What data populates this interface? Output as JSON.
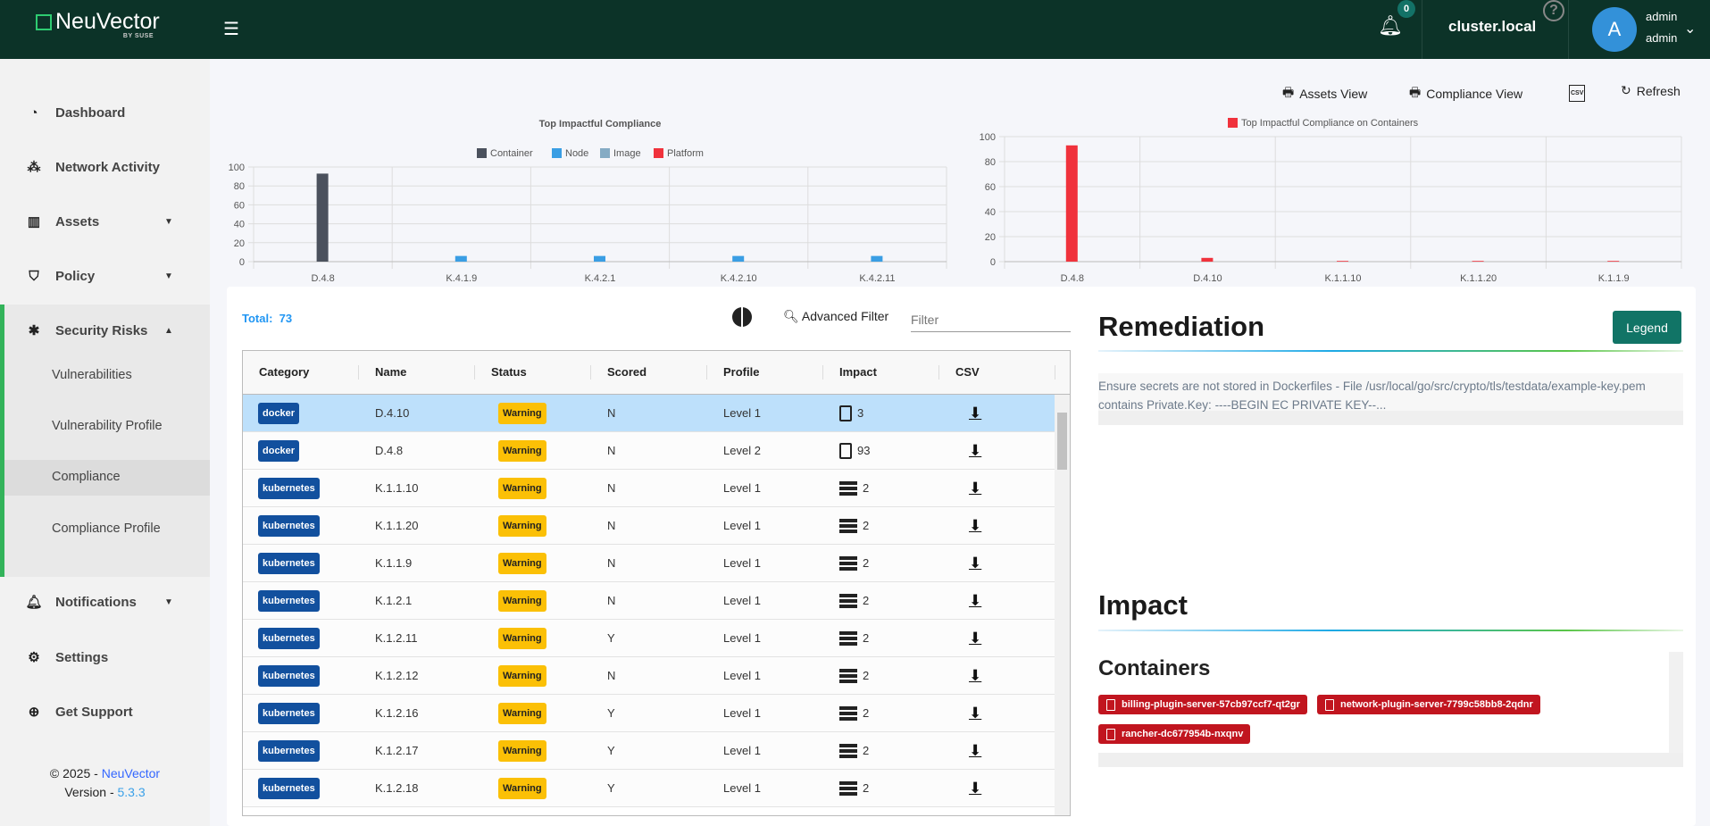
{
  "header": {
    "brand": "NeuVector",
    "brand_sub": "BY SUSE",
    "notification_count": "0",
    "cluster": "cluster.local",
    "help": "?",
    "avatar_letter": "A",
    "user_name": "admin",
    "user_role": "admin"
  },
  "sidebar": {
    "items": [
      {
        "label": "Dashboard",
        "icon": "gauge-icon"
      },
      {
        "label": "Network Activity",
        "icon": "network-icon"
      },
      {
        "label": "Assets",
        "icon": "assets-icon"
      },
      {
        "label": "Policy",
        "icon": "shield-icon"
      },
      {
        "label": "Security Risks",
        "icon": "bug-icon"
      },
      {
        "label": "Notifications",
        "icon": "bell-icon"
      },
      {
        "label": "Settings",
        "icon": "gear-icon"
      },
      {
        "label": "Get Support",
        "icon": "lifebuoy-icon"
      }
    ],
    "sub_items": [
      "Vulnerabilities",
      "Vulnerability Profile",
      "Compliance",
      "Compliance Profile"
    ],
    "active_sub": "Compliance",
    "footer": {
      "copyright": "© 2025 - ",
      "brand": "NeuVector",
      "version_label": "Version - ",
      "version": "5.3.3"
    }
  },
  "toolbar": {
    "assets_view": "Assets View",
    "compliance_view": "Compliance View",
    "csv": "CSV",
    "refresh": "Refresh"
  },
  "chart_data": [
    {
      "type": "bar",
      "title": "Top Impactful Compliance",
      "categories": [
        "D.4.8",
        "K.4.1.9",
        "K.4.2.1",
        "K.4.2.10",
        "K.4.2.11"
      ],
      "series": [
        {
          "name": "Container",
          "color": "#4b515d",
          "values": [
            93,
            0,
            0,
            0,
            0
          ]
        },
        {
          "name": "Node",
          "color": "#3a9ee4",
          "values": [
            0,
            6,
            6,
            6,
            6
          ]
        },
        {
          "name": "Image",
          "color": "#85abc4",
          "values": [
            0,
            0,
            0,
            0,
            0
          ]
        },
        {
          "name": "Platform",
          "color": "#f0323c",
          "values": [
            0,
            0,
            0,
            0,
            0
          ]
        }
      ],
      "ylim": [
        0,
        100
      ],
      "yticks": [
        0,
        20,
        40,
        60,
        80,
        100
      ],
      "grid": true,
      "legend": "top"
    },
    {
      "type": "bar",
      "title": "",
      "categories": [
        "D.4.8",
        "D.4.10",
        "K.1.1.10",
        "K.1.1.20",
        "K.1.1.9"
      ],
      "series": [
        {
          "name": "Top Impactful Compliance on Containers",
          "color": "#f0323c",
          "values": [
            93,
            3,
            0,
            0,
            0
          ]
        }
      ],
      "ylim": [
        0,
        100
      ],
      "yticks": [
        0,
        20,
        40,
        60,
        80,
        100
      ],
      "grid": true,
      "legend": "top"
    }
  ],
  "list": {
    "total_label": "Total:",
    "total": "73",
    "advanced_filter": "Advanced Filter",
    "filter_placeholder": "Filter",
    "columns": [
      "Category",
      "Name",
      "Status",
      "Scored",
      "Profile",
      "Impact",
      "CSV"
    ],
    "rows": [
      {
        "category": "docker",
        "name": "D.4.10",
        "status": "Warning",
        "scored": "N",
        "profile": "Level 1",
        "impact_type": "container",
        "impact": "3"
      },
      {
        "category": "docker",
        "name": "D.4.8",
        "status": "Warning",
        "scored": "N",
        "profile": "Level 2",
        "impact_type": "container",
        "impact": "93"
      },
      {
        "category": "kubernetes",
        "name": "K.1.1.10",
        "status": "Warning",
        "scored": "N",
        "profile": "Level 1",
        "impact_type": "node",
        "impact": "2"
      },
      {
        "category": "kubernetes",
        "name": "K.1.1.20",
        "status": "Warning",
        "scored": "N",
        "profile": "Level 1",
        "impact_type": "node",
        "impact": "2"
      },
      {
        "category": "kubernetes",
        "name": "K.1.1.9",
        "status": "Warning",
        "scored": "N",
        "profile": "Level 1",
        "impact_type": "node",
        "impact": "2"
      },
      {
        "category": "kubernetes",
        "name": "K.1.2.1",
        "status": "Warning",
        "scored": "N",
        "profile": "Level 1",
        "impact_type": "node",
        "impact": "2"
      },
      {
        "category": "kubernetes",
        "name": "K.1.2.11",
        "status": "Warning",
        "scored": "Y",
        "profile": "Level 1",
        "impact_type": "node",
        "impact": "2"
      },
      {
        "category": "kubernetes",
        "name": "K.1.2.12",
        "status": "Warning",
        "scored": "N",
        "profile": "Level 1",
        "impact_type": "node",
        "impact": "2"
      },
      {
        "category": "kubernetes",
        "name": "K.1.2.16",
        "status": "Warning",
        "scored": "Y",
        "profile": "Level 1",
        "impact_type": "node",
        "impact": "2"
      },
      {
        "category": "kubernetes",
        "name": "K.1.2.17",
        "status": "Warning",
        "scored": "Y",
        "profile": "Level 1",
        "impact_type": "node",
        "impact": "2"
      },
      {
        "category": "kubernetes",
        "name": "K.1.2.18",
        "status": "Warning",
        "scored": "Y",
        "profile": "Level 1",
        "impact_type": "node",
        "impact": "2"
      }
    ],
    "selected_row": 0
  },
  "detail": {
    "remediation_title": "Remediation",
    "legend_button": "Legend",
    "remediation_text": "Ensure secrets are not stored in Dockerfiles - File /usr/local/go/src/crypto/tls/testdata/example-key.pem contains Private.Key: ----BEGIN EC PRIVATE KEY--...",
    "impact_title": "Impact",
    "containers_title": "Containers",
    "containers": [
      "billing-plugin-server-57cb97ccf7-qt2gr",
      "network-plugin-server-7799c58bb8-2qdnr",
      "rancher-dc677954b-nxqnv"
    ]
  }
}
